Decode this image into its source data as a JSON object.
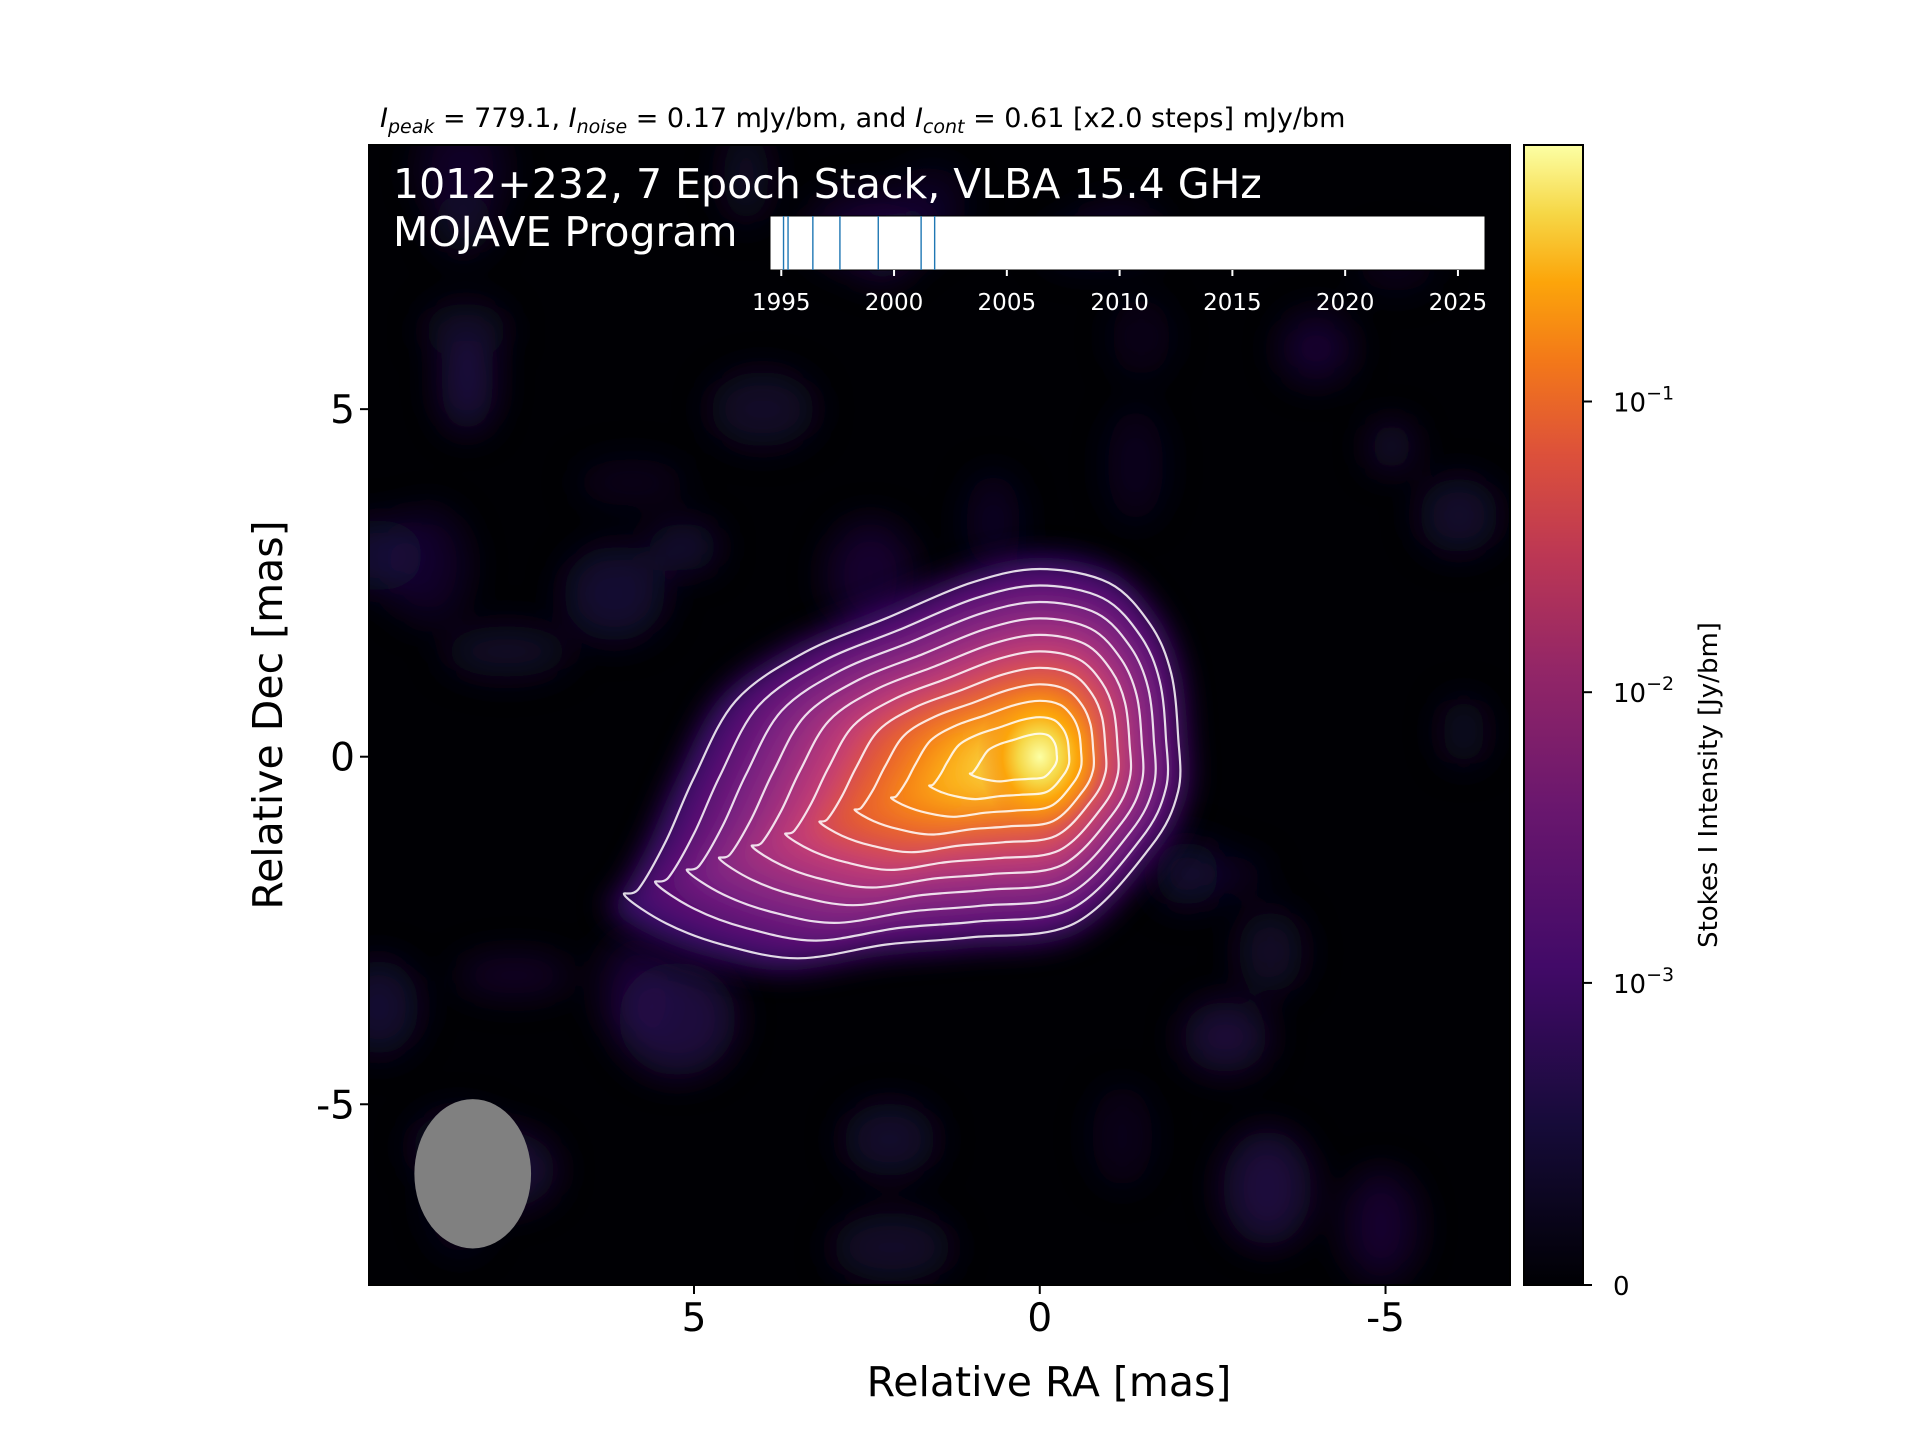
{
  "header": {
    "peak_var": "I",
    "peak_sub": "peak",
    "peak_text": " = 779.1, ",
    "noise_var": "I",
    "noise_sub": "noise",
    "noise_text": " = 0.17 mJy/bm, and ",
    "cont_var": "I",
    "cont_sub": "cont",
    "cont_text": " = 0.61 [x2.0 steps] mJy/bm"
  },
  "annotation": {
    "line1": "1012+232, 7 Epoch Stack, VLBA 15.4 GHz",
    "line2": "MOJAVE Program"
  },
  "colors": {
    "plot_background": "#000004",
    "contour": "#ffffff",
    "beam": "#808080",
    "epoch_line": "#1f77b4",
    "colormap": "inferno"
  },
  "chart_data": [
    {
      "type": "heatmap",
      "xlabel": "Relative RA [mas]",
      "ylabel": "Relative Dec [mas]",
      "xlim": [
        9.7,
        -6.8
      ],
      "ylim": [
        -7.6,
        8.8
      ],
      "x_ticks": [
        5,
        0,
        -5
      ],
      "y_ticks": [
        5,
        0,
        -5
      ],
      "x_tick_labels": [
        "5",
        "0",
        "-5"
      ],
      "y_tick_labels": [
        "5",
        "0",
        "-5"
      ],
      "peak_position": [
        0,
        0
      ],
      "peak_intensity_mJy_per_beam": 779.1,
      "contour_levels_mJy_per_beam": [
        0.61,
        1.22,
        2.44,
        4.88,
        9.76,
        19.52,
        39.04,
        78.08,
        156.16,
        312.32,
        624.64
      ],
      "beam": {
        "center": [
          8.2,
          -6.0
        ],
        "major_mas": 1.6,
        "minor_mas": 1.25,
        "pa_deg": 0
      },
      "colorbar": {
        "label": "Stokes I Intensity [Jy/bm]",
        "scale": "log",
        "ticks": [
          "0",
          "10^-3",
          "10^-2",
          "10^-1"
        ],
        "tick_base": [
          "10",
          "10",
          "10"
        ],
        "tick_exp": [
          "−3",
          "−2",
          "−1"
        ],
        "zero_label": "0"
      }
    },
    {
      "type": "timeline",
      "xlim": [
        1994.5,
        2026.2
      ],
      "ticks": [
        1995,
        2000,
        2005,
        2010,
        2015,
        2020,
        2025
      ],
      "tick_labels": [
        "1995",
        "2000",
        "2005",
        "2010",
        "2015",
        "2020",
        "2025"
      ],
      "epochs": [
        1995.1,
        1995.3,
        1996.4,
        1997.6,
        1999.3,
        2001.2,
        2001.8
      ]
    }
  ]
}
